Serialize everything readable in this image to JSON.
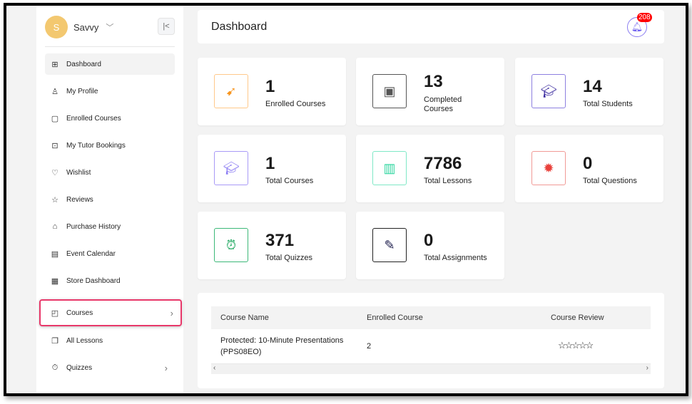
{
  "user": {
    "initial": "S",
    "name": "Savvy"
  },
  "sidebar": {
    "items": [
      {
        "label": "Dashboard",
        "icon": "grid-icon"
      },
      {
        "label": "My Profile",
        "icon": "user-icon"
      },
      {
        "label": "Enrolled Courses",
        "icon": "enrolled-icon"
      },
      {
        "label": "My Tutor Bookings",
        "icon": "booking-icon"
      },
      {
        "label": "Wishlist",
        "icon": "heart-icon"
      },
      {
        "label": "Reviews",
        "icon": "star-icon"
      },
      {
        "label": "Purchase History",
        "icon": "bag-icon"
      },
      {
        "label": "Event Calendar",
        "icon": "calendar-icon"
      },
      {
        "label": "Store Dashboard",
        "icon": "store-icon"
      },
      {
        "label": "Courses",
        "icon": "courses-icon"
      },
      {
        "label": "All Lessons",
        "icon": "book-icon"
      },
      {
        "label": "Quizzes",
        "icon": "stopwatch-icon"
      }
    ]
  },
  "header": {
    "title": "Dashboard",
    "notifications": "208"
  },
  "stats": [
    {
      "value": "1",
      "label": "Enrolled Courses",
      "color": "#f7a54a"
    },
    {
      "value": "13",
      "label": "Completed Courses",
      "color": "#444444"
    },
    {
      "value": "14",
      "label": "Total Students",
      "color": "#5b4fc7"
    },
    {
      "value": "1",
      "label": "Total Courses",
      "color": "#8b7cf3"
    },
    {
      "value": "7786",
      "label": "Total Lessons",
      "color": "#2fd6a0"
    },
    {
      "value": "0",
      "label": "Total Questions",
      "color": "#e9413b"
    },
    {
      "value": "371",
      "label": "Total Quizzes",
      "color": "#1fa860"
    },
    {
      "value": "0",
      "label": "Total Assignments",
      "color": "#1a1a4a"
    }
  ],
  "table": {
    "headers": [
      "Course Name",
      "Enrolled Course",
      "Course Review"
    ],
    "rows": [
      {
        "name_line1": "Protected: 10-Minute Presentations",
        "name_line2": "(PPS08EO)",
        "enrolled": "2",
        "rating": 0
      }
    ]
  }
}
